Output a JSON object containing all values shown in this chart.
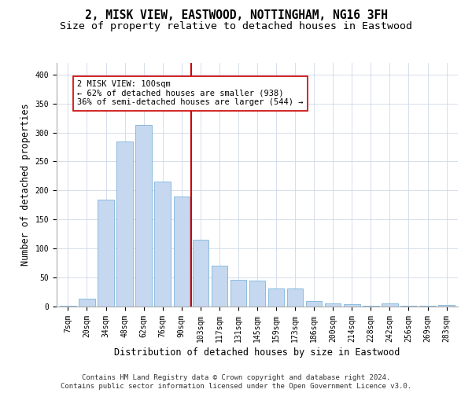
{
  "title": "2, MISK VIEW, EASTWOOD, NOTTINGHAM, NG16 3FH",
  "subtitle": "Size of property relative to detached houses in Eastwood",
  "xlabel": "Distribution of detached houses by size in Eastwood",
  "ylabel": "Number of detached properties",
  "categories": [
    "7sqm",
    "20sqm",
    "34sqm",
    "48sqm",
    "62sqm",
    "76sqm",
    "90sqm",
    "103sqm",
    "117sqm",
    "131sqm",
    "145sqm",
    "159sqm",
    "173sqm",
    "186sqm",
    "200sqm",
    "214sqm",
    "228sqm",
    "242sqm",
    "256sqm",
    "269sqm",
    "283sqm"
  ],
  "values": [
    2,
    13,
    184,
    285,
    313,
    215,
    190,
    115,
    70,
    46,
    45,
    31,
    31,
    9,
    6,
    4,
    1,
    6,
    1,
    1,
    3
  ],
  "bar_color": "#c5d8f0",
  "bar_edge_color": "#6aaad4",
  "vline_x_index": 7,
  "vline_color": "#cc0000",
  "annotation_text": "2 MISK VIEW: 100sqm\n← 62% of detached houses are smaller (938)\n36% of semi-detached houses are larger (544) →",
  "annotation_box_color": "#ffffff",
  "annotation_box_edge_color": "#cc0000",
  "footnote1": "Contains HM Land Registry data © Crown copyright and database right 2024.",
  "footnote2": "Contains public sector information licensed under the Open Government Licence v3.0.",
  "bg_color": "#ffffff",
  "grid_color": "#d0d8e8",
  "title_fontsize": 10.5,
  "subtitle_fontsize": 9.5,
  "axis_label_fontsize": 8.5,
  "tick_fontsize": 7,
  "annotation_fontsize": 7.5,
  "footnote_fontsize": 6.5,
  "ylim": [
    0,
    420
  ],
  "yticks": [
    0,
    50,
    100,
    150,
    200,
    250,
    300,
    350,
    400
  ]
}
